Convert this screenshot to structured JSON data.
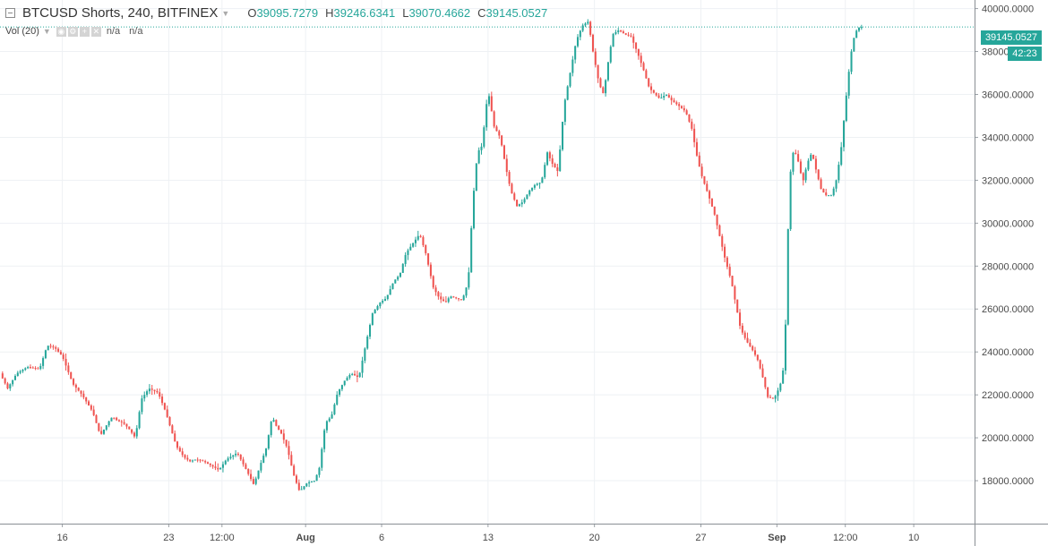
{
  "legend": {
    "symbol": "BTCUSD Shorts, 240, BITFINEX",
    "o_key": "O",
    "o_val": "39095.7279",
    "h_key": "H",
    "h_val": "39246.6341",
    "l_key": "L",
    "l_val": "39070.4662",
    "c_key": "C",
    "c_val": "39145.0527",
    "vol_label": "Vol (20)",
    "vol_val1": "n/a",
    "vol_val2": "n/a"
  },
  "last_price_label": "39145.0527",
  "countdown": "42:23",
  "colors": {
    "up": "#26a69a",
    "down": "#ef5350",
    "grid": "#eef1f4",
    "axis_text": "#4a4a4a",
    "price_line": "#26a69a"
  },
  "chart_data": {
    "type": "candlestick",
    "series": [
      {
        "name": "BTCUSD Shorts"
      }
    ],
    "y_axis": {
      "position": "right",
      "range": [
        16000,
        40400
      ],
      "ticks": [
        "18000.0000",
        "20000.0000",
        "22000.0000",
        "24000.0000",
        "26000.0000",
        "28000.0000",
        "30000.0000",
        "32000.0000",
        "34000.0000",
        "36000.0000",
        "38000.0000",
        "40000.0000"
      ]
    },
    "x_axis": {
      "ticks": [
        "16",
        "23",
        "12:00",
        "Aug",
        "6",
        "13",
        "20",
        "27",
        "Sep",
        "12:00",
        "10"
      ],
      "tick_day": [
        16,
        23,
        26.5,
        32,
        37,
        44,
        51,
        58,
        63,
        67.5,
        72
      ],
      "range_day": [
        11.9,
        76
      ]
    },
    "grid": true,
    "last_close": 39145.0527,
    "path_day": [
      11.9,
      12.4,
      13,
      13.7,
      14.5,
      15,
      15.5,
      16,
      16.7,
      17.3,
      18,
      18.5,
      19,
      19.3,
      19.6,
      20,
      20.4,
      20.8,
      21.2,
      21.7,
      22.3,
      22.8,
      23.1,
      23.5,
      24,
      24.4,
      24.8,
      25.3,
      25.8,
      26.3,
      26.8,
      27.5,
      28.1,
      28.6,
      29,
      29.4,
      29.8,
      30.1,
      30.4,
      30.8,
      31.2,
      31.6,
      32.1,
      32.6,
      32.9,
      33.3,
      33.7,
      34.1,
      34.6,
      35,
      35.5,
      36,
      36.4,
      36.9,
      37.3,
      37.8,
      38.2,
      38.6,
      39,
      39.5,
      39.9,
      40.4,
      40.8,
      41.2,
      41.5,
      41.9,
      42.3,
      42.7,
      43,
      43.3,
      43.6,
      44,
      44.4,
      44.8,
      45.2,
      45.5,
      45.9,
      46.3,
      46.7,
      47.1,
      47.5,
      47.9,
      48.2,
      48.6,
      49,
      49.4,
      49.8,
      50.2,
      50.6,
      50.9,
      51.3,
      51.6,
      51.9,
      52.2,
      52.6,
      53,
      53.4,
      53.8,
      54.2,
      54.6,
      55,
      55.3,
      55.7,
      56.1,
      56.5,
      57,
      57.4,
      57.8,
      58.1,
      58.5,
      58.9,
      59.3,
      59.6,
      60,
      60.3,
      60.6,
      61,
      61.3,
      61.7,
      62,
      62.4,
      62.8,
      63.2,
      63.5,
      63.8,
      64,
      64.3,
      64.7,
      65,
      65.3,
      65.6,
      65.9,
      66.2,
      66.6,
      66.9,
      67.2,
      67.5,
      67.8,
      68,
      68.3,
      68.6,
      68.9,
      69.1,
      69.3
    ],
    "path_close": [
      23000,
      22300,
      23000,
      23300,
      23200,
      24300,
      24200,
      23800,
      22500,
      22000,
      21200,
      20100,
      20700,
      21000,
      20800,
      20700,
      20400,
      20000,
      21800,
      22300,
      22100,
      21200,
      20500,
      19600,
      19100,
      18900,
      19000,
      18900,
      18700,
      18500,
      19000,
      19300,
      18500,
      17800,
      18700,
      19500,
      21000,
      20500,
      20200,
      19500,
      18300,
      17500,
      17900,
      18000,
      18600,
      20700,
      21000,
      22100,
      22700,
      23000,
      22800,
      24500,
      25800,
      26300,
      26500,
      27300,
      27600,
      28600,
      29000,
      29500,
      28600,
      27000,
      26500,
      26300,
      26600,
      26500,
      26400,
      27300,
      31000,
      33300,
      33600,
      36200,
      34500,
      34000,
      32500,
      31500,
      30800,
      31000,
      31500,
      31800,
      31900,
      33300,
      32800,
      32400,
      35500,
      37000,
      38500,
      39200,
      39400,
      38000,
      36500,
      36000,
      37500,
      38800,
      39000,
      38800,
      38700,
      38000,
      37200,
      36300,
      36000,
      35800,
      36000,
      35700,
      35500,
      35200,
      34400,
      32900,
      32100,
      31300,
      30400,
      29200,
      28300,
      27300,
      26200,
      25100,
      24500,
      24200,
      23700,
      23000,
      21900,
      21800,
      22400,
      23500,
      31500,
      33300,
      33200,
      31900,
      32800,
      33300,
      32400,
      31600,
      31300,
      31300,
      32000,
      33300,
      35500,
      37500,
      38500,
      39100,
      39145.0527
    ]
  }
}
